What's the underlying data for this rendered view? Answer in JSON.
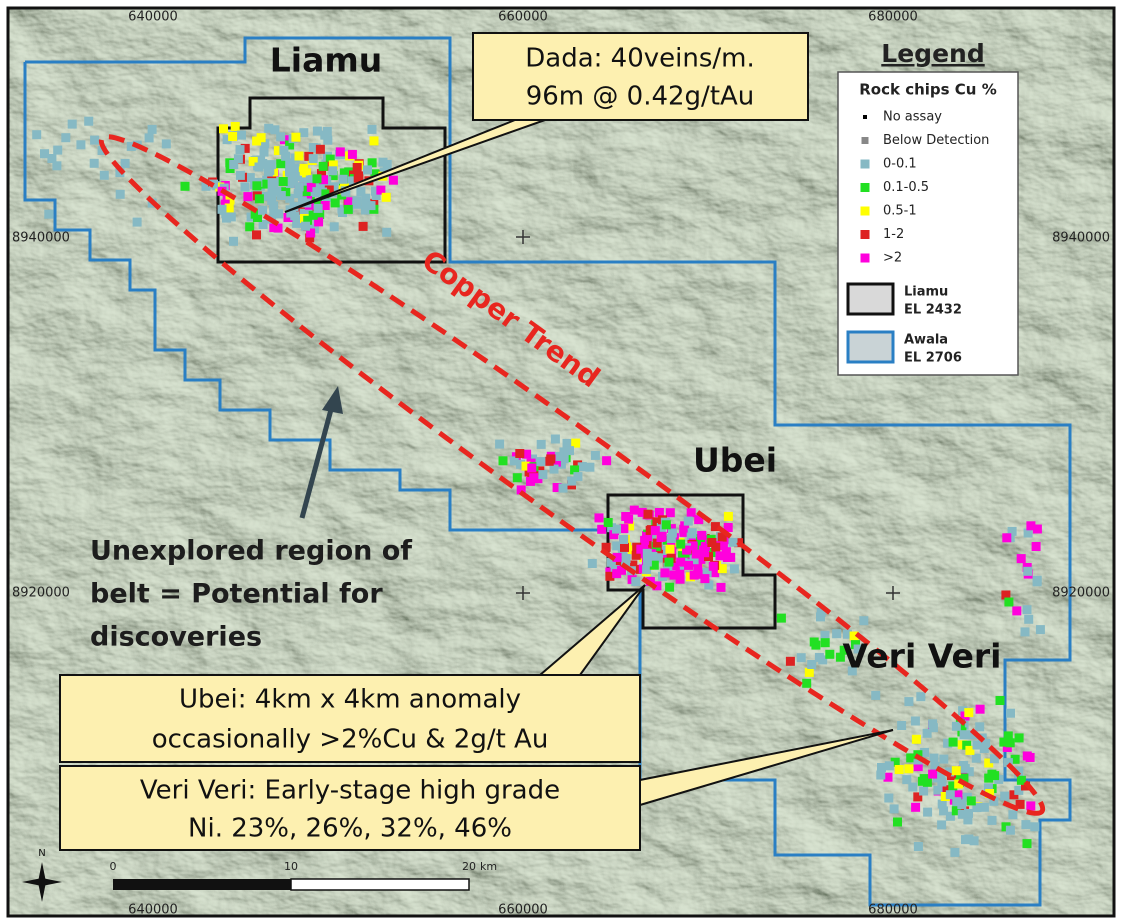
{
  "grid": {
    "eastings": [
      640000,
      660000,
      680000
    ],
    "northings": [
      8940000,
      8920000
    ]
  },
  "labels": {
    "liamu": "Liamu",
    "ubei": "Ubei",
    "veri_veri": "Veri Veri",
    "trend": "Copper Trend"
  },
  "callouts": [
    {
      "lines": [
        "Dada: 40veins/m.",
        "96m @ 0.42g/tAu"
      ]
    },
    {
      "lines": [
        "Ubei: 4km x 4km anomaly",
        "occasionally >2%Cu & 2g/t Au"
      ]
    },
    {
      "lines": [
        "Veri Veri: Early-stage high grade",
        "Ni.  23%, 26%, 32%, 46%"
      ]
    }
  ],
  "note": {
    "lines": [
      "Unexplored region of",
      "belt = Potential for",
      "discoveries"
    ]
  },
  "legend": {
    "title": "Legend",
    "subtitle": "Rock chips Cu %",
    "items": [
      {
        "label": "No assay",
        "color": "#000000"
      },
      {
        "label": "Below Detection",
        "color": "#888888"
      },
      {
        "label": "0-0.1",
        "color": "#86b9c4"
      },
      {
        "label": "0.1-0.5",
        "color": "#22e022"
      },
      {
        "label": "0.5-1",
        "color": "#ffff00"
      },
      {
        "label": "1-2",
        "color": "#dd2222"
      },
      {
        "label": ">2",
        "color": "#ff00dd"
      }
    ],
    "tenements": [
      {
        "name": "Liamu",
        "code": "EL 2432",
        "color": "#111111"
      },
      {
        "name": "Awala",
        "code": "EL 2706",
        "color": "#2a7fc4"
      }
    ]
  },
  "scale_bar": {
    "ticks": [
      0,
      10,
      20
    ],
    "unit": "km"
  },
  "north": "N"
}
